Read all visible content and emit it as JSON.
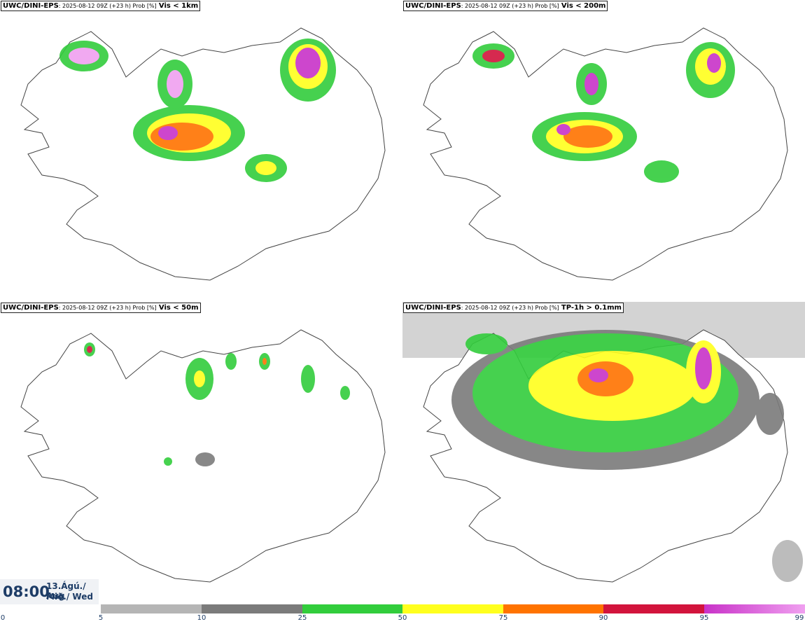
{
  "panels": [
    {
      "model": "UWC/DINI-EPS",
      "meta": ": 2025-08-12 09Z (+23 h) Prob [%]",
      "variable": "Vis < 1km"
    },
    {
      "model": "UWC/DINI-EPS",
      "meta": ": 2025-08-12 09Z (+23 h) Prob [%]",
      "variable": "Vis < 200m"
    },
    {
      "model": "UWC/DINI-EPS",
      "meta": ": 2025-08-12 09Z (+23 h) Prob [%]",
      "variable": "Vis < 50m"
    },
    {
      "model": "UWC/DINI-EPS",
      "meta": ": 2025-08-12 09Z (+23 h) Prob [%]",
      "variable": "TP-1h > 0.1mm"
    }
  ],
  "valid_time": {
    "time": "08:00",
    "date_line": "13.Ágú./ Aug",
    "day_line": "Mið./ Wed"
  },
  "colorbar": {
    "ticks": [
      "0",
      "5",
      "10",
      "25",
      "50",
      "75",
      "90",
      "95",
      "99"
    ],
    "colors": [
      "#ffffff",
      "#b5b5b5",
      "#7b7b7b",
      "#32cd3c",
      "#ffff1e",
      "#ff7300",
      "#d2143c",
      "#c832c8",
      "#f0a0f0"
    ]
  }
}
